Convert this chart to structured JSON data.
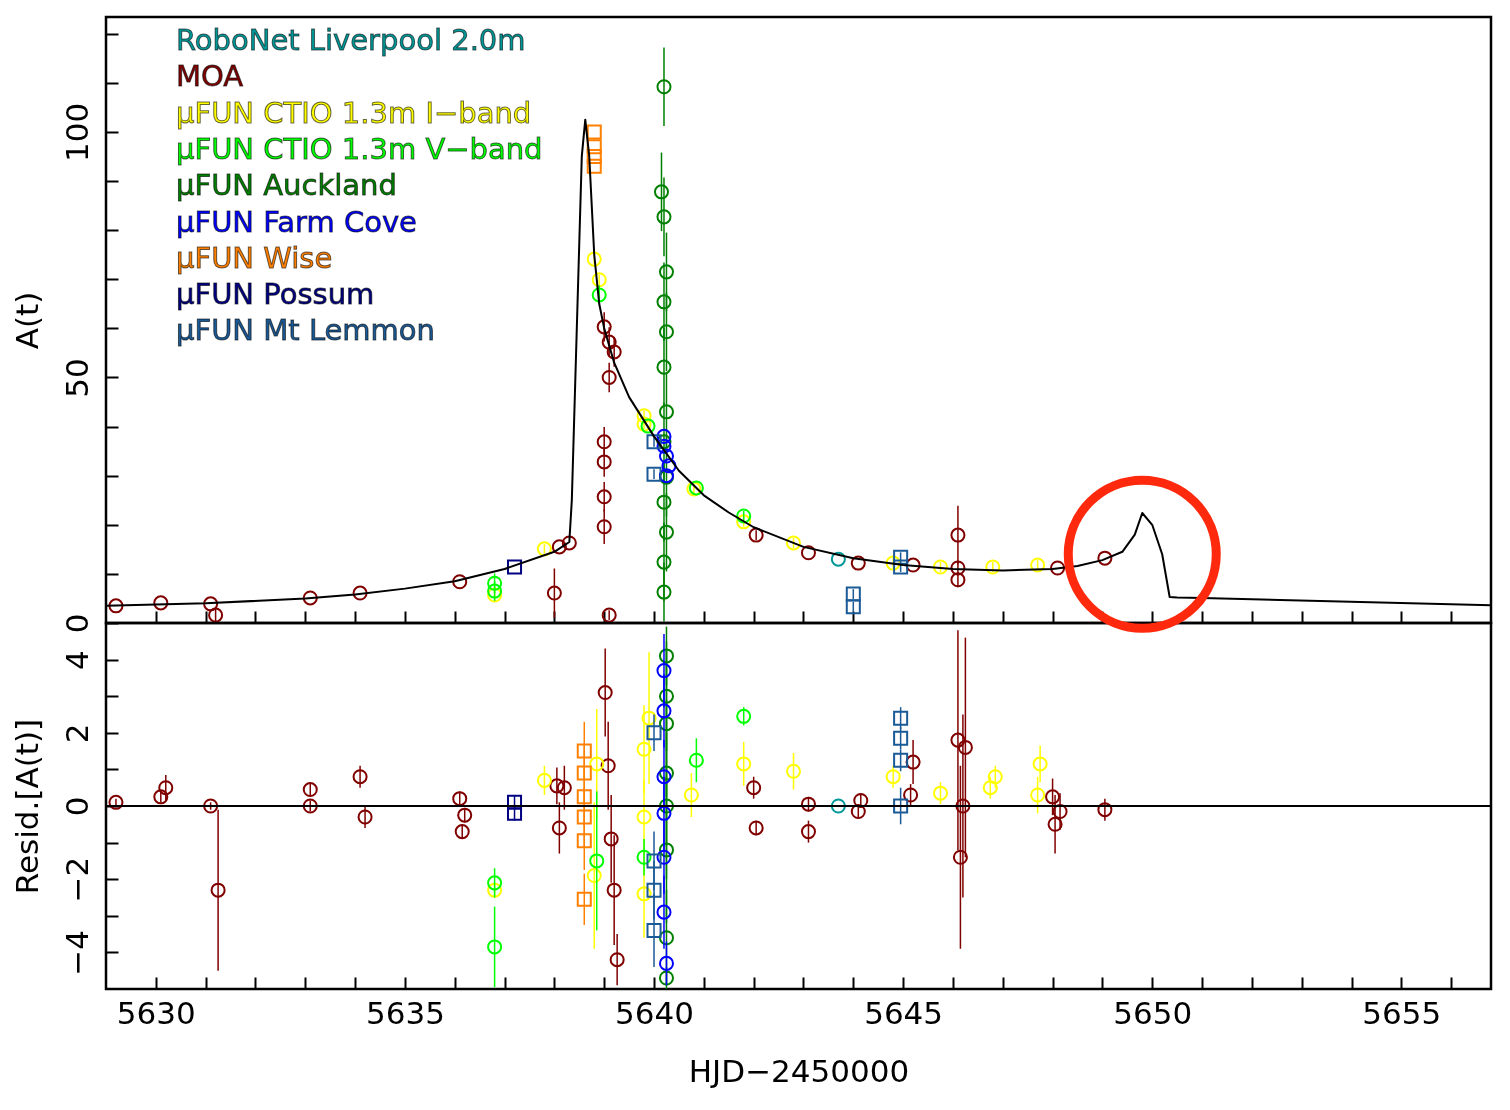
{
  "chart_data": [
    {
      "type": "scatter",
      "ylabel": "A(t)",
      "xlim": [
        5629,
        5656.8
      ],
      "ylim": [
        0,
        123.4
      ],
      "tick_labels": "y",
      "legend": "top left",
      "xticks": [
        5630,
        {
          "value": 5631,
          "label": null
        },
        {
          "value": 5632,
          "label": null
        },
        {
          "value": 5633,
          "label": null
        },
        {
          "value": 5634,
          "label": null
        },
        5635,
        {
          "value": 5636,
          "label": null
        },
        {
          "value": 5637,
          "label": null
        },
        {
          "value": 5638,
          "label": null
        },
        {
          "value": 5639,
          "label": null
        },
        5640,
        {
          "value": 5641,
          "label": null
        },
        {
          "value": 5642,
          "label": null
        },
        {
          "value": 5643,
          "label": null
        },
        {
          "value": 5644,
          "label": null
        },
        5645,
        {
          "value": 5646,
          "label": null
        },
        {
          "value": 5647,
          "label": null
        },
        {
          "value": 5648,
          "label": null
        },
        {
          "value": 5649,
          "label": null
        },
        5650,
        {
          "value": 5651,
          "label": null
        },
        {
          "value": 5652,
          "label": null
        },
        {
          "value": 5653,
          "label": null
        },
        {
          "value": 5654,
          "label": null
        },
        5655,
        {
          "value": 5656,
          "label": null
        }
      ],
      "yticks": [
        0,
        {
          "value": 10,
          "label": null
        },
        {
          "value": 20,
          "label": null
        },
        {
          "value": 30,
          "label": null
        },
        {
          "value": 40,
          "label": null
        },
        50,
        {
          "value": 60,
          "label": null
        },
        {
          "value": 70,
          "label": null
        },
        {
          "value": 80,
          "label": null
        },
        {
          "value": 90,
          "label": null
        },
        100,
        {
          "value": 110,
          "label": null
        },
        {
          "value": 120,
          "label": null
        }
      ],
      "series": [
        {
          "name": "RoboNet Liverpool 2.0m",
          "color": "#009999",
          "marker": "circle",
          "x": [
            5643.7
          ],
          "values": [
            13.0
          ]
        },
        {
          "name": "MOA",
          "color": "#800000",
          "marker": "circle",
          "x": [
            5629.2,
            5630.1,
            5631.1,
            5631.2,
            5633.1,
            5634.1,
            5636.1,
            5638.0,
            5638.1,
            5638.3,
            5639.0,
            5639.1,
            5639.2,
            5639.1,
            5639.0,
            5639.0,
            5639.0,
            5639.0,
            5639.1,
            5642.05,
            5643.1,
            5644.1,
            5645.2,
            5646.1,
            5646.1,
            5646.1,
            5648.1,
            5649.05
          ],
          "values": [
            3.5,
            4.1,
            3.9,
            1.6,
            5.1,
            6.1,
            8.4,
            6.1,
            15.5,
            16.3,
            60.3,
            57.2,
            55.2,
            50,
            36.9,
            32.8,
            25.7,
            19.6,
            1.6,
            17.9,
            14.3,
            12.2,
            11.8,
            17.9,
            11.2,
            8.8,
            11.2,
            13.2
          ],
          "errors": [
            null,
            null,
            null,
            1.5,
            null,
            null,
            null,
            5,
            null,
            null,
            3,
            3,
            3,
            3,
            3,
            3,
            3,
            3.5,
            1,
            1,
            null,
            null,
            null,
            6,
            1.5,
            1.5,
            null,
            null
          ]
        },
        {
          "name": "μFUN CTIO 1.3m I−band",
          "color": "#ffff00",
          "marker": "circle",
          "x": [
            5636.8,
            5637.8,
            5638.8,
            5638.9,
            5639.8,
            5639.8,
            5640.8,
            5641.8,
            5642.8,
            5644.8,
            5645.75,
            5646.8,
            5647.7
          ],
          "values": [
            5.7,
            15.1,
            74.1,
            69.9,
            42.2,
            40.5,
            27.3,
            20.6,
            16.3,
            12.2,
            11.4,
            11.4,
            11.8
          ],
          "errors": [
            1,
            1,
            1,
            1,
            1,
            1,
            1,
            1,
            1,
            1,
            1,
            1,
            1
          ]
        },
        {
          "name": "μFUN CTIO 1.3m V−band",
          "color": "#00ff00",
          "marker": "circle",
          "x": [
            5636.8,
            5636.8,
            5638.9,
            5639.88,
            5640.85,
            5641.8
          ],
          "values": [
            8.1,
            6.5,
            66.8,
            40.1,
            27.5,
            21.8
          ],
          "errors": [
            2,
            2,
            2,
            null,
            null,
            1
          ]
        },
        {
          "name": "μFUN Auckland",
          "color": "#008000",
          "marker": "circle",
          "x": [
            5640.2,
            5640.15,
            5640.2,
            5640.25,
            5640.2,
            5640.25,
            5640.2,
            5640.25,
            5640.2,
            5640.25,
            5640.2,
            5640.25,
            5640.2,
            5640.2
          ],
          "values": [
            109.2,
            87.8,
            82.7,
            71.5,
            65.4,
            59.3,
            52.1,
            43.0,
            36.9,
            29.7,
            24.6,
            18.5,
            12.4,
            6.3
          ],
          "errors": [
            8,
            8,
            8,
            8,
            8,
            8,
            8,
            8,
            8,
            8,
            8,
            8,
            8,
            6
          ]
        },
        {
          "name": "μFUN Farm Cove",
          "color": "#0000ff",
          "marker": "circle",
          "x": [
            5640.2,
            5640.25,
            5640.3,
            5640.25,
            5640.2
          ],
          "values": [
            36,
            34,
            32,
            30,
            38
          ]
        },
        {
          "name": "μFUN Wise",
          "color": "#ff8000",
          "marker": "square",
          "x": [
            5638.8,
            5638.8,
            5638.8,
            5638.8
          ],
          "values": [
            100,
            97,
            95,
            93
          ]
        },
        {
          "name": "μFUN Possum",
          "color": "#000080",
          "marker": "square",
          "x": [
            5637.2
          ],
          "values": [
            11.4
          ]
        },
        {
          "name": "μFUN Mt Lemmon",
          "color": "#1a5a96",
          "marker": "square",
          "x": [
            5640.0,
            5640.0,
            5644.95,
            5644.95,
            5644.0,
            5644.0
          ],
          "values": [
            36.9,
            30.3,
            13.4,
            11.4,
            5.9,
            3.3
          ],
          "errors": [
            1,
            1,
            1,
            1,
            1,
            1
          ]
        },
        {
          "type": "line",
          "color": "#000000",
          "x": [
            5629,
            5631,
            5633,
            5634,
            5635,
            5636,
            5637,
            5638,
            5638.3,
            5638.35,
            5638.45,
            5638.55,
            5638.62,
            5638.7,
            5638.8,
            5638.9,
            5639.0,
            5639.2,
            5639.5,
            5640.0,
            5640.5,
            5641,
            5641.5,
            5642,
            5643,
            5644,
            5645,
            5646,
            5647,
            5648,
            5648.5,
            5649,
            5649.4,
            5649.65,
            5649.8,
            5650,
            5650.2,
            5650.35,
            5650.5,
            5651,
            5656.8
          ],
          "values": [
            3.5,
            4.0,
            5.0,
            5.8,
            7.0,
            8.5,
            11.0,
            14.5,
            16.5,
            25,
            60,
            95,
            102.5,
            95,
            75,
            65,
            60,
            53,
            46,
            38,
            31,
            26,
            22.5,
            19.5,
            15.5,
            13.2,
            11.8,
            11.0,
            10.7,
            11.0,
            11.6,
            12.8,
            14.5,
            18,
            22.4,
            20,
            14,
            5.3,
            5.2,
            5.1,
            3.6
          ]
        }
      ]
    },
    {
      "type": "scatter",
      "xlabel": "HJD−2450000",
      "ylabel": "Resid.[A(t)]",
      "xlim": [
        5629,
        5656.8
      ],
      "ylim": [
        -5,
        5
      ],
      "xticks": [
        5630,
        {
          "value": 5631,
          "label": null
        },
        {
          "value": 5632,
          "label": null
        },
        {
          "value": 5633,
          "label": null
        },
        {
          "value": 5634,
          "label": null
        },
        5635,
        {
          "value": 5636,
          "label": null
        },
        {
          "value": 5637,
          "label": null
        },
        {
          "value": 5638,
          "label": null
        },
        {
          "value": 5639,
          "label": null
        },
        5640,
        {
          "value": 5641,
          "label": null
        },
        {
          "value": 5642,
          "label": null
        },
        {
          "value": 5643,
          "label": null
        },
        {
          "value": 5644,
          "label": null
        },
        5645,
        {
          "value": 5646,
          "label": null
        },
        {
          "value": 5647,
          "label": null
        },
        {
          "value": 5648,
          "label": null
        },
        {
          "value": 5649,
          "label": null
        },
        5650,
        {
          "value": 5651,
          "label": null
        },
        {
          "value": 5652,
          "label": null
        },
        {
          "value": 5653,
          "label": null
        },
        {
          "value": 5654,
          "label": null
        },
        5655,
        {
          "value": 5656,
          "label": null
        }
      ],
      "yticks": [
        {
          "value": -4,
          "label": "−4"
        },
        {
          "value": -3,
          "label": null
        },
        {
          "value": -2,
          "label": "−2"
        },
        {
          "value": -1,
          "label": null
        },
        0,
        {
          "value": 1,
          "label": null
        },
        2,
        {
          "value": 3,
          "label": null
        },
        4
      ],
      "ref_lines": [
        {
          "axis": "y",
          "value": 0,
          "color": "#000000"
        }
      ],
      "series": [
        {
          "color": "#009999",
          "marker": "circle",
          "x": [
            5643.7
          ],
          "values": [
            0.0
          ]
        },
        {
          "color": "#800000",
          "marker": "circle",
          "x": [
            5629.2,
            5630.1,
            5630.2,
            5631.1,
            5631.25,
            5633.1,
            5633.1,
            5634.1,
            5634.2,
            5636.1,
            5636.15,
            5636.2,
            5638.05,
            5638.1,
            5638.2,
            5639.02,
            5639.08,
            5639.14,
            5639.2,
            5639.26,
            5642.0,
            5642.05,
            5643.1,
            5643.1,
            5644.1,
            5644.15,
            5645.15,
            5645.2,
            5646.1,
            5646.25,
            5646.15,
            5646.2,
            5648.0,
            5648.05,
            5648.15,
            5649.05
          ],
          "values": [
            0.1,
            0.25,
            0.5,
            0.0,
            -2.3,
            0.45,
            0.0,
            0.8,
            -0.3,
            0.2,
            -0.7,
            -0.25,
            0.55,
            -0.6,
            0.5,
            3.1,
            1.1,
            -0.9,
            -2.3,
            -4.2,
            0.5,
            -0.6,
            0.05,
            -0.7,
            -0.15,
            0.15,
            0.3,
            1.2,
            1.8,
            1.6,
            -1.4,
            0.0,
            0.25,
            -0.5,
            -0.15,
            -0.1
          ],
          "errors": [
            0.1,
            0.15,
            0.35,
            0.1,
            2.2,
            0.15,
            0.15,
            0.3,
            0.3,
            0.2,
            0.2,
            0.2,
            0.5,
            0.7,
            0.6,
            1.2,
            1.2,
            1.2,
            1.5,
            0.7,
            0.3,
            0.2,
            0.2,
            0.3,
            0.2,
            0.2,
            0.3,
            0.6,
            3,
            3,
            2.5,
            2.5,
            0.5,
            0.8,
            0.5,
            0.3
          ]
        },
        {
          "color": "#ffff00",
          "marker": "circle",
          "x": [
            5637.8,
            5636.8,
            5638.85,
            5638.8,
            5639.9,
            5639.8,
            5639.8,
            5639.8,
            5640.75,
            5641.8,
            5642.8,
            5644.8,
            5645.75,
            5646.75,
            5646.85,
            5647.75,
            5647.7
          ],
          "values": [
            0.7,
            -2.3,
            1.15,
            -1.9,
            2.4,
            1.55,
            -0.3,
            -2.4,
            0.3,
            1.15,
            0.95,
            0.8,
            0.35,
            0.5,
            0.8,
            1.15,
            0.3
          ],
          "errors": [
            0.4,
            0.2,
            1.5,
            2,
            1.8,
            1.2,
            1,
            1.2,
            0.6,
            0.6,
            0.5,
            0.3,
            0.3,
            0.3,
            0.3,
            0.5,
            0.5
          ]
        },
        {
          "color": "#00ff00",
          "marker": "circle",
          "x": [
            5636.8,
            5636.8,
            5638.85,
            5639.8,
            5640.85,
            5641.8
          ],
          "values": [
            -2.1,
            -3.85,
            -1.5,
            -1.4,
            1.25,
            2.45
          ],
          "errors": [
            0.4,
            1.1,
            1.9,
            0.5,
            0.6,
            0.25
          ]
        },
        {
          "color": "#008000",
          "marker": "circle",
          "x": [
            5640.25,
            5640.25,
            5640.25,
            5640.25,
            5640.25,
            5640.25,
            5640.25,
            5640.25
          ],
          "values": [
            4.1,
            3.0,
            2.25,
            0.9,
            0,
            -1.2,
            -3.6,
            -4.7
          ],
          "errors": [
            0.8,
            1.5,
            2,
            2,
            2,
            2,
            1.3,
            0.3
          ]
        },
        {
          "color": "#0000ff",
          "marker": "circle",
          "x": [
            5640.2,
            5640.2,
            5640.2,
            5640.2,
            5640.2,
            5640.2,
            5640.25
          ],
          "values": [
            3.7,
            2.6,
            0.8,
            -0.2,
            -1.4,
            -2.9,
            -4.3
          ],
          "errors": [
            1,
            1,
            1,
            1,
            1,
            1,
            0.6
          ]
        },
        {
          "color": "#ff8000",
          "marker": "square",
          "x": [
            5638.6,
            5638.6,
            5638.6,
            5638.6,
            5638.6,
            5638.6
          ],
          "values": [
            1.5,
            0.9,
            0.25,
            -0.3,
            -0.95,
            -2.55
          ],
          "errors": [
            0.8,
            0.8,
            0.8,
            0.8,
            0.8,
            0.7
          ]
        },
        {
          "color": "#000080",
          "marker": "square",
          "x": [
            5637.2,
            5637.2
          ],
          "values": [
            0.1,
            -0.2
          ],
          "errors": [
            0.2,
            0.2
          ]
        },
        {
          "color": "#1a5a96",
          "marker": "square",
          "x": [
            5640.0,
            5640.0,
            5640.0,
            5640.0,
            5644.95,
            5644.95,
            5644.95,
            5644.95
          ],
          "values": [
            2.0,
            -1.5,
            -2.3,
            -3.4,
            2.4,
            1.85,
            1.25,
            0.0
          ],
          "errors": [
            0.5,
            0.8,
            0.8,
            1,
            0.3,
            0.3,
            0.3,
            0.5
          ]
        }
      ]
    }
  ]
}
